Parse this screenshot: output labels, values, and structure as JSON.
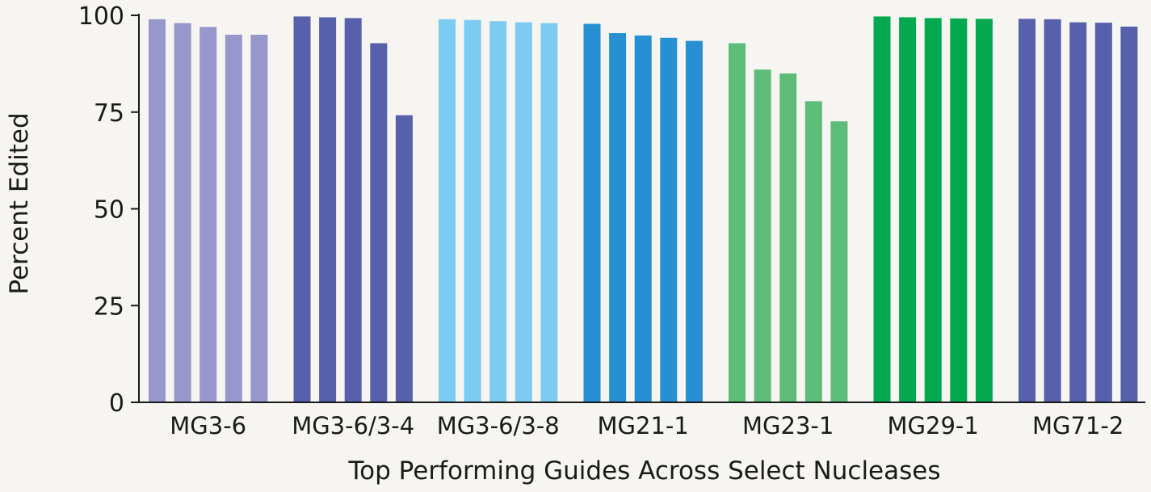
{
  "chart_data": {
    "type": "bar",
    "title": "",
    "xlabel": "Top Performing Guides Across Select Nucleases",
    "ylabel": "Percent Edited",
    "ylim": [
      0,
      100
    ],
    "yticks": [
      "0",
      "25",
      "50",
      "75",
      "100"
    ],
    "ytick_values": [
      0,
      25,
      50,
      75,
      100
    ],
    "grid": false,
    "legend": "none",
    "groups": [
      {
        "name": "MG3-6",
        "color": "#9797cc",
        "values": [
          99,
          98,
          97,
          95,
          95
        ]
      },
      {
        "name": "MG3-6/3-4",
        "color": "#5660ab",
        "values": [
          99.7,
          99.5,
          99.3,
          92.8,
          74.2
        ]
      },
      {
        "name": "MG3-6/3-8",
        "color": "#7ccbf0",
        "values": [
          99,
          98.8,
          98.5,
          98.2,
          98
        ]
      },
      {
        "name": "MG21-1",
        "color": "#2690d3",
        "values": [
          97.8,
          95.4,
          94.8,
          94.2,
          93.4
        ]
      },
      {
        "name": "MG23-1",
        "color": "#5dbd78",
        "values": [
          92.8,
          86,
          85,
          77.8,
          72.6
        ]
      },
      {
        "name": "MG29-1",
        "color": "#04a84e",
        "values": [
          99.7,
          99.5,
          99.3,
          99.2,
          99.1
        ]
      },
      {
        "name": "MG71-2",
        "color": "#5660ab",
        "values": [
          99.1,
          99,
          98.2,
          98.1,
          97.1
        ]
      }
    ]
  }
}
